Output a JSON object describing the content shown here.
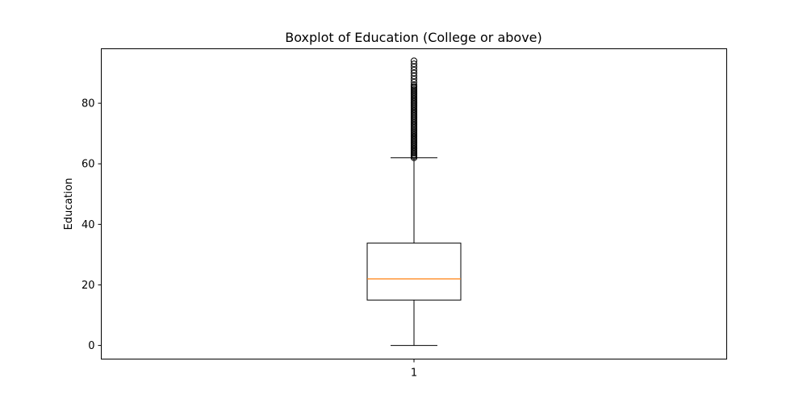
{
  "chart_data": {
    "type": "boxplot",
    "title": "Boxplot of Education (College or above)",
    "xlabel": "",
    "ylabel": "Education",
    "categories": [
      "1"
    ],
    "ylim": [
      -4.5,
      98
    ],
    "yticks": [
      0,
      20,
      40,
      60,
      80
    ],
    "grid": false,
    "boxes": [
      {
        "category": "1",
        "min": 0,
        "q1": 15,
        "median": 22,
        "q3": 33.8,
        "max": 62,
        "outliers": [
          62,
          62.5,
          63,
          63.5,
          64,
          64.5,
          65,
          65.5,
          66,
          66.5,
          67,
          67.5,
          68,
          68.5,
          69,
          69.5,
          70,
          70.5,
          71,
          71.5,
          72,
          72.5,
          73,
          73.5,
          74,
          74.5,
          75,
          75.5,
          76,
          76.5,
          77,
          77.5,
          78,
          78.5,
          79,
          79.5,
          80,
          80.5,
          81,
          81.5,
          82,
          82.5,
          83,
          83.5,
          84,
          84.5,
          85,
          85.5,
          86,
          87,
          88,
          89,
          90,
          91,
          92,
          93,
          94
        ]
      }
    ],
    "colors": {
      "box": "#000000",
      "median": "#ff7f0e",
      "outlier": "#000000"
    }
  }
}
